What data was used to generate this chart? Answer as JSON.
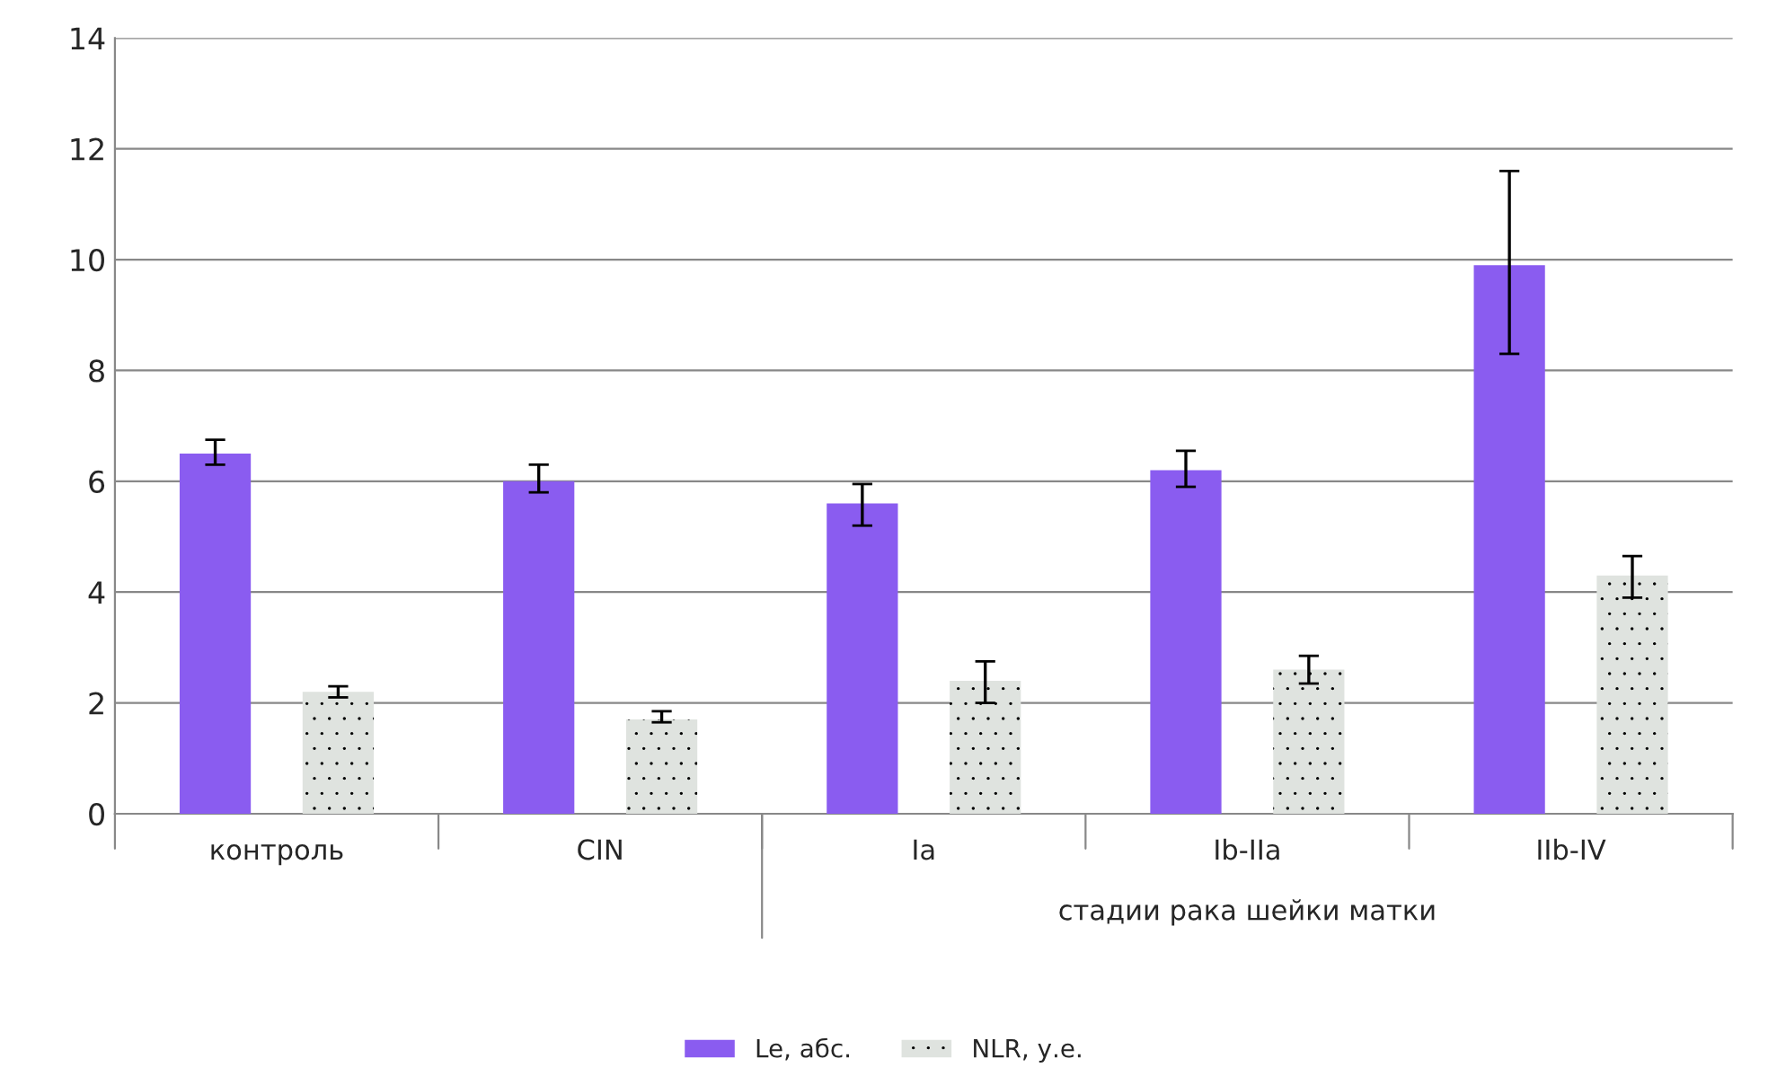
{
  "chart_data": {
    "type": "bar",
    "categories": [
      "контроль",
      "CIN",
      "Ia",
      "Ib-IIa",
      "IIb-IV"
    ],
    "series": [
      {
        "name": "Le, абс.",
        "color": "#8a5cf0",
        "values": [
          6.5,
          6.0,
          5.6,
          6.2,
          9.9
        ],
        "errors": [
          [
            6.3,
            6.75
          ],
          [
            5.8,
            6.3
          ],
          [
            5.2,
            5.95
          ],
          [
            5.9,
            6.55
          ],
          [
            8.3,
            11.6
          ]
        ]
      },
      {
        "name": "NLR, у.е.",
        "color": "#dfe3df",
        "values": [
          2.2,
          1.7,
          2.4,
          2.6,
          4.3
        ],
        "errors": [
          [
            2.1,
            2.3
          ],
          [
            1.65,
            1.85
          ],
          [
            2.0,
            2.75
          ],
          [
            2.35,
            2.85
          ],
          [
            3.9,
            4.65
          ]
        ]
      }
    ],
    "ylim": [
      0,
      14
    ],
    "yticks": [
      0,
      2,
      4,
      6,
      8,
      10,
      12,
      14
    ],
    "grid": "y",
    "legend": "bottom",
    "annotations": [
      "стадии рака шейки матки"
    ]
  }
}
